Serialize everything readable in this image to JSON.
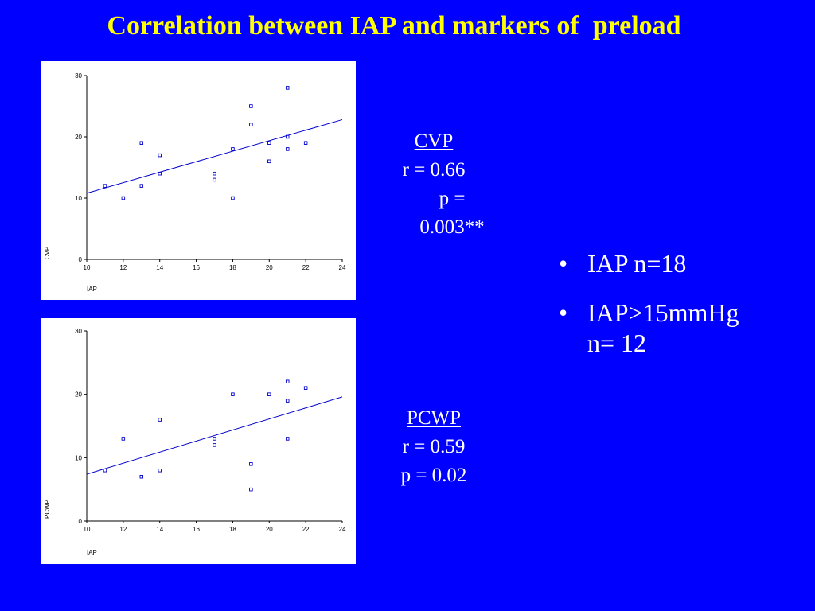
{
  "title": "Correlation between IAP and markers of  preload",
  "chart_data": [
    {
      "type": "scatter",
      "title": "",
      "xlabel": "IAP",
      "ylabel": "CVP",
      "xlim": [
        10,
        24
      ],
      "ylim": [
        0,
        30
      ],
      "xticks": [
        10,
        12,
        14,
        16,
        18,
        20,
        22,
        24
      ],
      "yticks": [
        0,
        10,
        20,
        30
      ],
      "grid": false,
      "points": [
        [
          11,
          12
        ],
        [
          12,
          10
        ],
        [
          13,
          19
        ],
        [
          13,
          12
        ],
        [
          14,
          17
        ],
        [
          14,
          14
        ],
        [
          17,
          14
        ],
        [
          17,
          13
        ],
        [
          18,
          18
        ],
        [
          18,
          10
        ],
        [
          19,
          25
        ],
        [
          19,
          22
        ],
        [
          20,
          19
        ],
        [
          20,
          16
        ],
        [
          21,
          28
        ],
        [
          21,
          20
        ],
        [
          21,
          18
        ],
        [
          22,
          19
        ]
      ],
      "fit_line": {
        "x": [
          10,
          24
        ],
        "y": [
          10.8,
          22.8
        ]
      },
      "point_color": "#0000CC",
      "line_color": "#0000CC"
    },
    {
      "type": "scatter",
      "title": "",
      "xlabel": "IAP",
      "ylabel": "PCWP",
      "xlim": [
        10,
        24
      ],
      "ylim": [
        0,
        30
      ],
      "xticks": [
        10,
        12,
        14,
        16,
        18,
        20,
        22,
        24
      ],
      "yticks": [
        0,
        10,
        20,
        30
      ],
      "grid": false,
      "points": [
        [
          11,
          8
        ],
        [
          12,
          13
        ],
        [
          13,
          7
        ],
        [
          14,
          16
        ],
        [
          14,
          8
        ],
        [
          17,
          13
        ],
        [
          17,
          12
        ],
        [
          18,
          20
        ],
        [
          19,
          9
        ],
        [
          19,
          5
        ],
        [
          20,
          20
        ],
        [
          21,
          22
        ],
        [
          21,
          19
        ],
        [
          21,
          13
        ],
        [
          22,
          21
        ]
      ],
      "fit_line": {
        "x": [
          10,
          24
        ],
        "y": [
          7.4,
          19.6
        ]
      },
      "point_color": "#0000CC",
      "line_color": "#0000CC"
    }
  ],
  "stats": {
    "cvp": {
      "name": "CVP",
      "r": "r = 0.66",
      "p": "p = 0.003**"
    },
    "pcwp": {
      "name": "PCWP",
      "r": "r = 0.59",
      "p": "p = 0.02"
    }
  },
  "bullets": [
    {
      "line1": "IAP n=18",
      "line2": ""
    },
    {
      "line1": "IAP>15mmHg",
      "line2": "n= 12"
    }
  ]
}
